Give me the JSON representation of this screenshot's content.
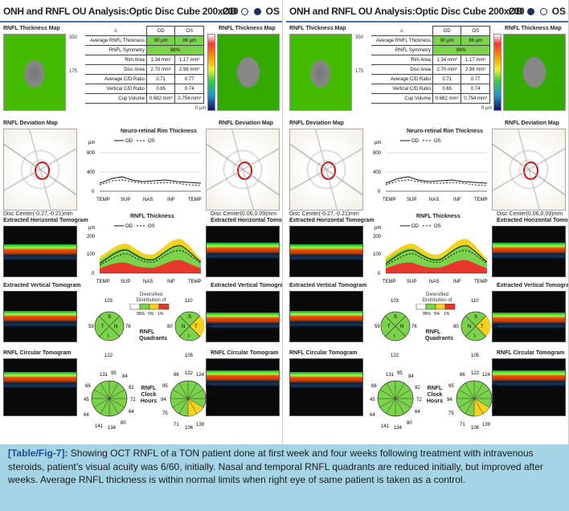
{
  "panels": [
    {
      "title": "ONH and RNFL OU Analysis:Optic Disc Cube 200x200",
      "eyes": {
        "od": "OD",
        "os": "OS",
        "selected": "OS"
      },
      "thickness_map_label": "RNFL Thickness Map",
      "scale": {
        "top": "350",
        "mid": "175",
        "bottom": "0 µm"
      },
      "table": {
        "col_od": "OD",
        "col_os": "OS",
        "rows": [
          {
            "label": "Average RNFL Thickness",
            "od": "90 µm",
            "os": "86 µm"
          },
          {
            "label": "RNFL Symmetry",
            "od": "88%"
          },
          {
            "label": "Rim Area",
            "od": "1.34 mm²",
            "os": "1.17 mm²"
          },
          {
            "label": "Disc Area",
            "od": "2.70 mm²",
            "os": "2.96 mm²"
          },
          {
            "label": "Average C/D Ratio",
            "od": "0.71",
            "os": "0.77"
          },
          {
            "label": "Vertical C/D Ratio",
            "od": "0.65",
            "os": "0.74"
          },
          {
            "label": "Cup Volume",
            "od": "0.682 mm³",
            "os": "0.754 mm³"
          }
        ]
      },
      "deviation_label": "RNFL Deviation Map",
      "rim_title": "Neuro-retinal Rim Thickness",
      "disc_center_od": "Disc Center(-0.27,-0.21)mm",
      "disc_center_os": "Disc Center(0.06,0.09)mm",
      "htomo_label": "Extracted Horizontal Tomogram",
      "vtomo_label": "Extracted Vertical Tomogram",
      "ctomo_label": "RNFL Circular Tomogram",
      "rnfl_title": "RNFL Thickness",
      "quadrants": {
        "od": {
          "top": "103",
          "bottom": "122",
          "left": "59",
          "right": "76"
        },
        "os": {
          "top": "110",
          "bottom": "105",
          "left": "80",
          "right": "48"
        },
        "label": "RNFL Quadrants",
        "letters": {
          "s": "S",
          "t": "T",
          "n": "N",
          "i": "I"
        }
      },
      "clock_label": "RNFL Clock Hours",
      "clock_od": [
        "131",
        "95",
        "84",
        "92",
        "72",
        "64",
        "80",
        "134",
        "141",
        "64",
        "45",
        "68"
      ],
      "clock_os": [
        "86",
        "122",
        "124",
        "54",
        "35",
        "56",
        "139",
        "106",
        "71",
        "75",
        "94",
        "95"
      ]
    },
    {
      "title": "ONH and RNFL OU Analysis:Optic Disc Cube 200x200",
      "eyes": {
        "od": "OD",
        "os": "OS",
        "selected": "OD"
      },
      "thickness_map_label": "RNFL Thickness Map",
      "scale": {
        "top": "350",
        "mid": "175",
        "bottom": "0 µm"
      },
      "table": {
        "col_od": "OD",
        "col_os": "OS",
        "rows": [
          {
            "label": "Average RNFL Thickness",
            "od": "90 µm",
            "os": "86 µm"
          },
          {
            "label": "RNFL Symmetry",
            "od": "88%"
          },
          {
            "label": "Rim Area",
            "od": "1.34 mm²",
            "os": "1.17 mm²"
          },
          {
            "label": "Disc Area",
            "od": "2.70 mm²",
            "os": "2.96 mm²"
          },
          {
            "label": "Average C/D Ratio",
            "od": "0.71",
            "os": "0.77"
          },
          {
            "label": "Vertical C/D Ratio",
            "od": "0.65",
            "os": "0.74"
          },
          {
            "label": "Cup Volume",
            "od": "0.682 mm³",
            "os": "0.754 mm³"
          }
        ]
      },
      "deviation_label": "RNFL Deviation Map",
      "rim_title": "Neuro-retinal Rim Thickness",
      "disc_center_od": "Disc Center(-0.27,-0.21)mm",
      "disc_center_os": "Disc Center(0.06,0.09)mm",
      "htomo_label": "Extracted Horizontal Tomogram",
      "vtomo_label": "Extracted Vertical Tomogram",
      "ctomo_label": "RNFL Circular Tomogram",
      "rnfl_title": "RNFL Thickness",
      "quadrants": {
        "od": {
          "top": "103",
          "bottom": "122",
          "left": "59",
          "right": "76"
        },
        "os": {
          "top": "110",
          "bottom": "105",
          "left": "80",
          "right": "48"
        },
        "label": "RNFL Quadrants",
        "letters": {
          "s": "S",
          "t": "T",
          "n": "N",
          "i": "I"
        }
      },
      "clock_label": "RNFL Clock Hours",
      "clock_od": [
        "131",
        "95",
        "84",
        "92",
        "72",
        "64",
        "80",
        "134",
        "141",
        "64",
        "45",
        "68"
      ],
      "clock_os": [
        "86",
        "122",
        "124",
        "54",
        "35",
        "56",
        "139",
        "106",
        "71",
        "75",
        "94",
        "95"
      ]
    }
  ],
  "legend": {
    "od": "OD",
    "os": "OS",
    "dist_title": "Diversified Distribution of Normals",
    "pct": [
      "95%",
      "5%",
      "1%"
    ]
  },
  "rim_chart": {
    "unit": "µm",
    "yticks": [
      "800",
      "400",
      "0"
    ],
    "xticks": [
      "TEMP",
      "SUP",
      "NAS",
      "INF",
      "TEMP"
    ]
  },
  "rnfl_chart": {
    "unit": "µm",
    "yticks": [
      "200",
      "100",
      "0"
    ],
    "xticks": [
      "TEMP",
      "SUP",
      "NAS",
      "INF",
      "TEMP"
    ]
  },
  "colors": {
    "normal_green": "#7bd34b",
    "border_yellow": "#f4d21f",
    "below_red": "#e8382b",
    "caption_bg": "#a5d4e6",
    "caption_label": "#1b4f93"
  },
  "caption": {
    "label": "[Table/Fig-7]:",
    "text": "Showing OCT RNFL of a TON patient done at first week and four weeks following treatment with intravenous steroids, patient’s visual acuity was 6/60, initially. Nasal and temporal RNFL quadrants are reduced initially, but improved after weeks. Average RNFL thickness is within normal limits when right eye of same patient is taken as a control."
  }
}
